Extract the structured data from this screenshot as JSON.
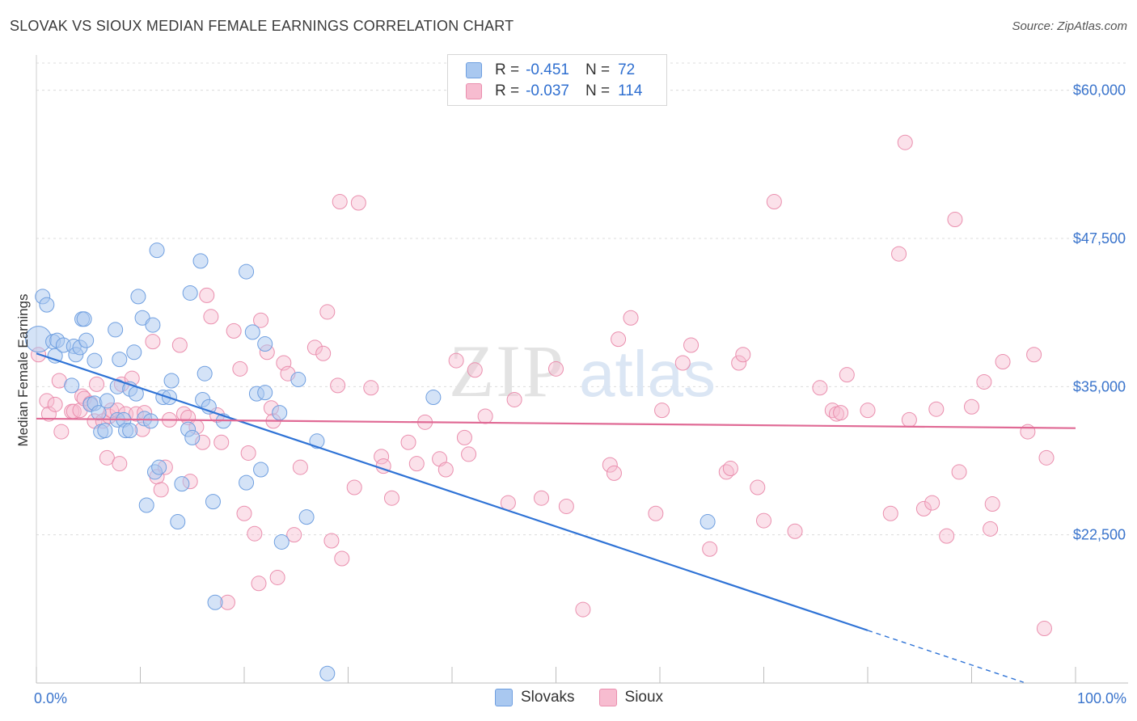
{
  "title": "SLOVAK VS SIOUX MEDIAN FEMALE EARNINGS CORRELATION CHART",
  "source": "Source: ZipAtlas.com",
  "watermark": {
    "zip": "ZIP",
    "atlas": "atlas"
  },
  "legend": {
    "items": [
      {
        "r_label": "R =",
        "r_value": "-0.451",
        "n_label": "N =",
        "n_value": "72"
      },
      {
        "r_label": "R =",
        "r_value": "-0.037",
        "n_label": "N =",
        "n_value": "114"
      }
    ]
  },
  "bottom_legend": [
    "Slovaks",
    "Sioux"
  ],
  "colors": {
    "slovaks_fill": "#a9c8f0",
    "slovaks_stroke": "#6f9fe0",
    "slovaks_line": "#2f73d6",
    "sioux_fill": "#f7bcd0",
    "sioux_stroke": "#ea8fae",
    "sioux_line": "#e06a95",
    "axis_text": "#3a74cc",
    "grid": "#dcdcdc"
  },
  "chart_data": {
    "type": "scatter",
    "title": "SLOVAK VS SIOUX MEDIAN FEMALE EARNINGS CORRELATION CHART",
    "xlabel": "",
    "ylabel": "Median Female Earnings",
    "xlim": [
      0,
      100
    ],
    "ylim": [
      10000,
      62500
    ],
    "x_tick_labels": [
      {
        "x": 0,
        "label": "0.0%"
      },
      {
        "x": 100,
        "label": "100.0%"
      }
    ],
    "y_ticks": [
      22500,
      35000,
      47500,
      60000
    ],
    "y_tick_labels": [
      "$22,500",
      "$35,000",
      "$47,500",
      "$60,000"
    ],
    "series": [
      {
        "name": "Slovaks",
        "r": -0.451,
        "n": 72,
        "trend": {
          "x_start": 0,
          "y_start": 37800,
          "x_solid_end": 80,
          "x_end": 100,
          "slope_per_pct": -292
        },
        "points": [
          [
            0.2,
            39000
          ],
          [
            0.6,
            42600
          ],
          [
            1.0,
            41900
          ],
          [
            1.6,
            38800
          ],
          [
            1.8,
            37600
          ],
          [
            2.0,
            38900
          ],
          [
            2.6,
            38500
          ],
          [
            3.4,
            35100
          ],
          [
            3.6,
            38400
          ],
          [
            3.8,
            37700
          ],
          [
            4.2,
            38300
          ],
          [
            4.4,
            40700
          ],
          [
            4.6,
            40700
          ],
          [
            4.8,
            38900
          ],
          [
            5.2,
            33500
          ],
          [
            5.6,
            33600
          ],
          [
            5.6,
            37200
          ],
          [
            6.0,
            32800
          ],
          [
            6.2,
            31200
          ],
          [
            6.6,
            31300
          ],
          [
            6.8,
            33800
          ],
          [
            7.6,
            39800
          ],
          [
            7.8,
            32200
          ],
          [
            7.8,
            35000
          ],
          [
            8.0,
            37300
          ],
          [
            8.4,
            32200
          ],
          [
            8.6,
            31300
          ],
          [
            9.0,
            31300
          ],
          [
            9.0,
            34800
          ],
          [
            9.4,
            37900
          ],
          [
            9.6,
            34400
          ],
          [
            9.8,
            42600
          ],
          [
            10.2,
            40800
          ],
          [
            10.4,
            32300
          ],
          [
            10.6,
            25000
          ],
          [
            11.0,
            32100
          ],
          [
            11.2,
            40200
          ],
          [
            11.4,
            27800
          ],
          [
            11.6,
            46500
          ],
          [
            11.8,
            28200
          ],
          [
            12.2,
            34100
          ],
          [
            12.8,
            34100
          ],
          [
            13.0,
            35500
          ],
          [
            13.6,
            23600
          ],
          [
            14.0,
            26800
          ],
          [
            14.6,
            31400
          ],
          [
            14.8,
            42900
          ],
          [
            15.0,
            30700
          ],
          [
            15.8,
            45600
          ],
          [
            16.0,
            33900
          ],
          [
            16.2,
            36100
          ],
          [
            16.6,
            33300
          ],
          [
            17.0,
            25300
          ],
          [
            17.2,
            16800
          ],
          [
            18.0,
            32100
          ],
          [
            20.2,
            26900
          ],
          [
            20.2,
            44700
          ],
          [
            20.8,
            39600
          ],
          [
            21.2,
            34400
          ],
          [
            21.6,
            28000
          ],
          [
            22.0,
            34500
          ],
          [
            22.0,
            38600
          ],
          [
            23.4,
            32800
          ],
          [
            23.6,
            21900
          ],
          [
            25.2,
            35600
          ],
          [
            26.0,
            24000
          ],
          [
            27.0,
            30400
          ],
          [
            28.0,
            10800
          ],
          [
            38.2,
            34100
          ],
          [
            64.6,
            23600
          ]
        ]
      },
      {
        "name": "Sioux",
        "r": -0.037,
        "n": 114,
        "trend": {
          "x_start": 0,
          "y_start": 32300,
          "x_end": 100,
          "y_end": 31500
        },
        "points": [
          [
            0.2,
            37700
          ],
          [
            1.0,
            33800
          ],
          [
            1.2,
            32700
          ],
          [
            1.8,
            33500
          ],
          [
            2.2,
            35500
          ],
          [
            2.4,
            31200
          ],
          [
            3.4,
            32900
          ],
          [
            3.6,
            32900
          ],
          [
            4.2,
            33000
          ],
          [
            4.4,
            34200
          ],
          [
            4.6,
            34000
          ],
          [
            5.2,
            33600
          ],
          [
            5.6,
            32100
          ],
          [
            5.8,
            35200
          ],
          [
            6.4,
            32100
          ],
          [
            6.8,
            29000
          ],
          [
            7.0,
            32500
          ],
          [
            7.2,
            33000
          ],
          [
            7.8,
            33000
          ],
          [
            8.0,
            28500
          ],
          [
            8.2,
            35200
          ],
          [
            8.6,
            32700
          ],
          [
            9.2,
            35700
          ],
          [
            9.6,
            32700
          ],
          [
            10.2,
            31400
          ],
          [
            10.4,
            32800
          ],
          [
            11.2,
            38800
          ],
          [
            11.6,
            27400
          ],
          [
            12.0,
            26300
          ],
          [
            12.4,
            28200
          ],
          [
            12.8,
            32200
          ],
          [
            13.8,
            38500
          ],
          [
            14.2,
            32700
          ],
          [
            14.6,
            32400
          ],
          [
            14.8,
            27000
          ],
          [
            15.4,
            31600
          ],
          [
            16.0,
            30300
          ],
          [
            16.4,
            42700
          ],
          [
            16.8,
            40900
          ],
          [
            17.4,
            32600
          ],
          [
            17.8,
            30300
          ],
          [
            18.4,
            16800
          ],
          [
            19.0,
            39700
          ],
          [
            19.6,
            36500
          ],
          [
            20.0,
            24300
          ],
          [
            20.4,
            29400
          ],
          [
            21.0,
            22600
          ],
          [
            21.4,
            18400
          ],
          [
            21.6,
            40600
          ],
          [
            22.2,
            37900
          ],
          [
            22.6,
            33200
          ],
          [
            22.8,
            32100
          ],
          [
            23.2,
            18900
          ],
          [
            23.8,
            37000
          ],
          [
            24.2,
            36100
          ],
          [
            24.8,
            22500
          ],
          [
            25.4,
            28200
          ],
          [
            26.8,
            38300
          ],
          [
            27.6,
            37800
          ],
          [
            28.0,
            41300
          ],
          [
            28.4,
            22000
          ],
          [
            29.0,
            35100
          ],
          [
            29.2,
            50600
          ],
          [
            29.4,
            20500
          ],
          [
            30.6,
            26500
          ],
          [
            31.0,
            50500
          ],
          [
            32.2,
            34900
          ],
          [
            33.2,
            29100
          ],
          [
            33.4,
            28300
          ],
          [
            34.2,
            25600
          ],
          [
            35.8,
            30300
          ],
          [
            36.6,
            28500
          ],
          [
            37.4,
            32000
          ],
          [
            38.8,
            28900
          ],
          [
            39.4,
            28000
          ],
          [
            40.4,
            37200
          ],
          [
            41.2,
            30700
          ],
          [
            41.6,
            29300
          ],
          [
            42.2,
            36400
          ],
          [
            43.2,
            32500
          ],
          [
            45.4,
            25200
          ],
          [
            46.0,
            33900
          ],
          [
            48.6,
            25600
          ],
          [
            50.0,
            36500
          ],
          [
            51.0,
            24900
          ],
          [
            52.6,
            16200
          ],
          [
            55.2,
            28400
          ],
          [
            55.6,
            27700
          ],
          [
            56.0,
            39000
          ],
          [
            57.2,
            40800
          ],
          [
            59.6,
            24300
          ],
          [
            60.2,
            33000
          ],
          [
            62.2,
            37000
          ],
          [
            63.0,
            38500
          ],
          [
            64.8,
            21300
          ],
          [
            66.4,
            27800
          ],
          [
            66.8,
            28100
          ],
          [
            67.6,
            37000
          ],
          [
            68.0,
            37700
          ],
          [
            69.4,
            26500
          ],
          [
            70.0,
            23700
          ],
          [
            71.0,
            50600
          ],
          [
            73.0,
            22800
          ],
          [
            75.4,
            34900
          ],
          [
            76.6,
            33000
          ],
          [
            77.0,
            32700
          ],
          [
            77.4,
            32800
          ],
          [
            78.0,
            36000
          ],
          [
            80.0,
            33000
          ],
          [
            82.2,
            24300
          ],
          [
            83.0,
            46200
          ],
          [
            83.6,
            55600
          ],
          [
            84.0,
            32200
          ],
          [
            85.4,
            24700
          ],
          [
            86.2,
            25200
          ],
          [
            86.6,
            33100
          ],
          [
            87.6,
            22400
          ],
          [
            88.4,
            49100
          ],
          [
            88.8,
            27800
          ],
          [
            90.0,
            33300
          ],
          [
            91.2,
            35400
          ],
          [
            91.8,
            23000
          ],
          [
            92.0,
            25100
          ],
          [
            93.0,
            37100
          ],
          [
            95.4,
            31200
          ],
          [
            96.0,
            37700
          ],
          [
            97.0,
            14600
          ],
          [
            97.2,
            29000
          ]
        ]
      }
    ]
  }
}
